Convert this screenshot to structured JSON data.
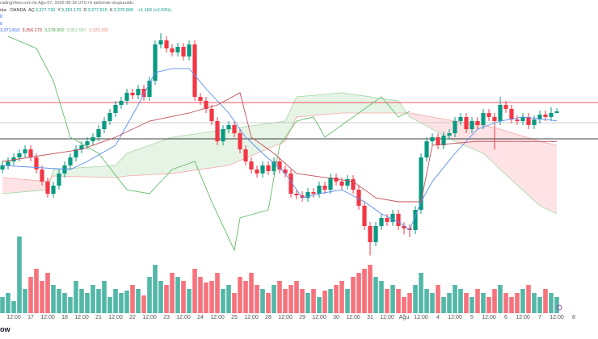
{
  "header": {
    "credit": "radingView.com ile Ağu 07, 2025 08:18 UTC+3 tarihinde oluşturuldu",
    "symbol": "ıba · OANDA",
    "ohlc": [
      {
        "key": "AÇ",
        "value": "3,377.730"
      },
      {
        "key": "Y",
        "value": "3,381.170"
      },
      {
        "key": "D",
        "value": "3,377.515"
      },
      {
        "key": "K",
        "value": "3,378.900"
      }
    ],
    "change": "+1.160 (+0.03%)",
    "indicator_rows": [
      "0",
      "0"
    ],
    "indicator_values": [
      {
        "text": "3,371.810",
        "color": "#2962ff"
      },
      {
        "text": "3,356.173",
        "color": "#b22833"
      },
      {
        "text": "3,378.900",
        "color": "#43a047"
      },
      {
        "text": "3,352.997",
        "color": "#81c784"
      },
      {
        "text": "3,326.260",
        "color": "#f28b82"
      }
    ]
  },
  "logo": "ow",
  "chart_data": {
    "type": "candlestick",
    "up_color": "#089981",
    "down_color": "#f23645",
    "ylim": [
      3225.2,
      3463.1
    ],
    "categories": [
      null,
      null,
      "12:00",
      null,
      null,
      "17",
      null,
      null,
      "12:00",
      null,
      null,
      "18",
      null,
      null,
      "12:00",
      null,
      null,
      "21",
      null,
      null,
      "12:00",
      null,
      null,
      "22",
      null,
      null,
      "12:00",
      null,
      null,
      "23",
      null,
      null,
      "12:00",
      null,
      null,
      "24",
      null,
      null,
      "12:00",
      null,
      null,
      "25",
      null,
      null,
      "12:00",
      null,
      null,
      "28",
      null,
      null,
      "12:00",
      null,
      null,
      "29",
      null,
      null,
      "12:00",
      null,
      null,
      "30",
      null,
      null,
      "12:00",
      null,
      null,
      "31",
      null,
      null,
      "12:00",
      null,
      null,
      "Ağu",
      null,
      null,
      "12:00",
      null,
      null,
      "4",
      null,
      null,
      "12:00",
      null,
      null,
      "5",
      null,
      null,
      "12:00",
      null,
      null,
      "6",
      null,
      null,
      "12:00",
      null,
      null,
      "7",
      null,
      null,
      "12:00",
      null,
      null,
      "8",
      null
    ],
    "open": [
      3335.0,
      3338.1,
      3341.1,
      3344.1,
      3347.2,
      3350.2,
      3344.1,
      3335.0,
      3325.9,
      3316.7,
      3322.8,
      3332.0,
      3338.1,
      3344.1,
      3350.2,
      3353.3,
      3356.3,
      3359.4,
      3365.5,
      3371.6,
      3377.7,
      3383.8,
      3386.9,
      3393.0,
      3391.1,
      3396.0,
      3389.9,
      3402.1,
      3429.5,
      3432.6,
      3426.5,
      3423.5,
      3427.7,
      3420.4,
      3429.5,
      3389.9,
      3386.9,
      3380.8,
      3371.6,
      3356.3,
      3365.5,
      3368.6,
      3362.4,
      3350.2,
      3341.1,
      3335.0,
      3332.0,
      3338.1,
      3333.8,
      3341.1,
      3335.0,
      3332.0,
      3316.7,
      3315.5,
      3313.6,
      3317.9,
      3316.7,
      3322.8,
      3319.7,
      3328.9,
      3325.9,
      3322.8,
      3327.7,
      3319.7,
      3307.6,
      3292.3,
      3280.1,
      3292.3,
      3298.4,
      3295.4,
      3301.5,
      3292.3,
      3290.5,
      3289.2,
      3304.5,
      3344.1,
      3356.3,
      3359.4,
      3353.3,
      3360.6,
      3362.4,
      3371.6,
      3374.7,
      3365.5,
      3371.6,
      3368.6,
      3377.7,
      3374.7,
      3371.6,
      3383.8,
      3380.8,
      3372.8,
      3371.6,
      3374.7,
      3368.6,
      3372.8,
      3376.5,
      3374.7,
      3377.7,
      null,
      null,
      null,
      null
    ],
    "high": [
      3341.1,
      3344.1,
      3347.1,
      3350.2,
      3353.2,
      3353.2,
      3347.1,
      3338.0,
      3328.9,
      3325.8,
      3335.0,
      3341.1,
      3347.1,
      3353.2,
      3356.3,
      3359.3,
      3362.4,
      3368.5,
      3374.6,
      3380.7,
      3386.8,
      3389.9,
      3396.0,
      3396.0,
      3399.0,
      3399.0,
      3405.1,
      3432.5,
      3438.0,
      3435.6,
      3429.5,
      3430.7,
      3430.7,
      3432.5,
      3432.5,
      3392.9,
      3389.9,
      3383.8,
      3374.6,
      3368.5,
      3371.6,
      3371.6,
      3365.4,
      3353.2,
      3344.1,
      3338.0,
      3341.1,
      3341.1,
      3344.1,
      3344.1,
      3338.0,
      3335.0,
      3319.7,
      3318.5,
      3320.9,
      3320.9,
      3325.8,
      3325.8,
      3331.9,
      3331.9,
      3328.9,
      3330.7,
      3330.7,
      3322.7,
      3310.6,
      3295.3,
      3295.3,
      3301.4,
      3301.4,
      3304.5,
      3304.5,
      3295.3,
      3293.5,
      3307.5,
      3347.1,
      3359.3,
      3362.4,
      3362.4,
      3363.6,
      3365.4,
      3374.6,
      3377.7,
      3377.7,
      3374.6,
      3374.6,
      3380.7,
      3380.7,
      3377.7,
      3390.0,
      3386.8,
      3383.8,
      3375.8,
      3377.7,
      3377.7,
      3375.8,
      3379.5,
      3379.5,
      3382.0,
      3381.2,
      null,
      null,
      null,
      null
    ],
    "low": [
      3332.0,
      3335.1,
      3338.1,
      3341.1,
      3344.2,
      3341.1,
      3332.0,
      3322.9,
      3313.7,
      3313.7,
      3319.8,
      3329.0,
      3335.1,
      3341.1,
      3347.2,
      3350.3,
      3353.3,
      3356.4,
      3362.5,
      3368.6,
      3374.7,
      3380.8,
      3383.9,
      3388.1,
      3388.1,
      3386.9,
      3386.9,
      3399.1,
      3426.5,
      3423.5,
      3420.5,
      3420.5,
      3417.4,
      3417.4,
      3386.9,
      3383.9,
      3377.8,
      3368.6,
      3353.3,
      3353.3,
      3362.5,
      3359.4,
      3347.2,
      3338.1,
      3332.0,
      3329.0,
      3329.0,
      3330.8,
      3330.8,
      3332.0,
      3329.0,
      3313.7,
      3312.5,
      3310.6,
      3310.6,
      3313.7,
      3313.7,
      3316.7,
      3316.7,
      3322.9,
      3319.8,
      3319.8,
      3316.7,
      3304.6,
      3289.3,
      3270.0,
      3277.1,
      3289.3,
      3292.4,
      3292.4,
      3289.3,
      3286.0,
      3284.0,
      3286.2,
      3301.5,
      3341.1,
      3353.3,
      3350.3,
      3350.3,
      3357.6,
      3359.4,
      3368.6,
      3362.5,
      3362.5,
      3365.6,
      3365.6,
      3371.7,
      3350.0,
      3368.6,
      3377.8,
      3369.8,
      3368.6,
      3368.6,
      3365.6,
      3365.6,
      3369.8,
      3371.7,
      3371.7,
      3377.5,
      null,
      null,
      null,
      null
    ],
    "close": [
      3338.1,
      3341.1,
      3344.1,
      3347.2,
      3350.2,
      3344.1,
      3335.0,
      3325.9,
      3316.7,
      3322.8,
      3332.0,
      3338.1,
      3344.1,
      3350.2,
      3353.3,
      3356.3,
      3359.4,
      3365.5,
      3371.6,
      3377.7,
      3383.8,
      3386.9,
      3393.0,
      3391.1,
      3396.0,
      3389.9,
      3402.1,
      3429.5,
      3432.6,
      3426.5,
      3423.5,
      3427.7,
      3420.4,
      3429.5,
      3389.9,
      3386.9,
      3380.8,
      3371.6,
      3356.3,
      3365.5,
      3368.6,
      3362.4,
      3350.2,
      3341.1,
      3335.0,
      3332.0,
      3338.1,
      3333.8,
      3341.1,
      3335.0,
      3332.0,
      3316.7,
      3315.5,
      3313.6,
      3317.9,
      3316.7,
      3322.8,
      3319.7,
      3328.9,
      3325.9,
      3322.8,
      3327.7,
      3319.7,
      3307.6,
      3292.3,
      3280.1,
      3292.3,
      3298.4,
      3295.4,
      3301.5,
      3292.3,
      3290.5,
      3289.2,
      3304.5,
      3344.1,
      3356.3,
      3359.4,
      3353.3,
      3360.6,
      3362.4,
      3371.6,
      3374.7,
      3365.5,
      3371.6,
      3368.6,
      3377.7,
      3374.7,
      3371.6,
      3383.8,
      3380.8,
      3372.8,
      3371.6,
      3374.7,
      3368.6,
      3372.8,
      3376.5,
      3374.7,
      3377.7,
      3378.9,
      null,
      null,
      null,
      null
    ],
    "volume": {
      "vlim": [
        0,
        100
      ],
      "values": [
        20,
        25,
        15,
        95,
        30,
        45,
        55,
        40,
        50,
        35,
        30,
        25,
        20,
        40,
        30,
        25,
        35,
        30,
        40,
        20,
        30,
        25,
        28,
        35,
        30,
        22,
        45,
        60,
        40,
        35,
        50,
        45,
        40,
        30,
        55,
        45,
        38,
        40,
        50,
        30,
        35,
        25,
        45,
        40,
        50,
        35,
        30,
        25,
        35,
        40,
        30,
        35,
        40,
        30,
        25,
        30,
        20,
        28,
        30,
        35,
        40,
        30,
        45,
        50,
        55,
        60,
        45,
        40,
        30,
        35,
        30,
        20,
        25,
        35,
        50,
        30,
        25,
        35,
        20,
        25,
        35,
        30,
        25,
        20,
        30,
        25,
        20,
        30,
        35,
        25,
        20,
        25,
        30,
        35,
        25,
        20,
        30,
        25,
        20,
        null,
        null,
        null,
        null
      ]
    },
    "cloud": {
      "x": [
        0,
        8,
        9,
        20,
        22,
        30,
        40,
        50,
        52,
        60,
        70,
        72,
        80,
        85,
        88,
        95,
        98
      ],
      "span_a": [
        3316.7,
        3319.7,
        3335.0,
        3338.1,
        3347.2,
        3359.4,
        3365.5,
        3371.6,
        3389.9,
        3393.0,
        3386.9,
        3374.7,
        3356.3,
        3347.2,
        3335.0,
        3307.6,
        3301.5
      ],
      "span_b": [
        3328.9,
        3325.9,
        3330.1,
        3328.9,
        3330.1,
        3332.0,
        3338.1,
        3356.3,
        3374.7,
        3377.7,
        3377.7,
        3377.7,
        3371.6,
        3368.6,
        3365.5,
        3356.3,
        3353.3
      ],
      "span_a_color": "#a5d6a7",
      "span_b_color": "#f4a9a9",
      "up_fill": "rgba(76,175,80,0.14)",
      "down_fill": "rgba(242,54,69,0.14)"
    },
    "lines": [
      {
        "color": "#5b8def",
        "x": [
          0,
          12,
          15,
          20,
          24,
          27,
          30,
          33,
          36,
          40,
          43,
          46,
          50,
          53,
          56,
          60,
          64,
          67,
          70,
          72,
          74,
          76,
          80,
          84,
          88,
          92,
          98
        ],
        "values": [
          3338.1,
          3335.0,
          3341.1,
          3353.3,
          3383.8,
          3408.2,
          3411.3,
          3411.3,
          3396.0,
          3377.7,
          3359.4,
          3347.2,
          3332.0,
          3313.6,
          3316.7,
          3319.7,
          3310.6,
          3301.5,
          3295.4,
          3289.2,
          3310.6,
          3325.9,
          3347.2,
          3365.5,
          3371.6,
          3374.7,
          3371.8
        ]
      },
      {
        "color": "#c0505a",
        "x": [
          0,
          14,
          20,
          26,
          33,
          38,
          42,
          44,
          48,
          52,
          62,
          66,
          70,
          74,
          76,
          84,
          98
        ],
        "values": [
          3341.1,
          3350.2,
          3359.4,
          3371.6,
          3377.7,
          3383.8,
          3393.0,
          3359.4,
          3347.2,
          3332.0,
          3325.9,
          3313.6,
          3310.6,
          3310.6,
          3353.3,
          3356.3,
          3356.2
        ]
      },
      {
        "color": "#66bb6a",
        "x": [
          1,
          6,
          9,
          12,
          17,
          22,
          26,
          30,
          34,
          37,
          41,
          42,
          47,
          49,
          52,
          55,
          57,
          61,
          67,
          70,
          72
        ],
        "values": [
          3435.6,
          3426.5,
          3402.1,
          3359.4,
          3347.2,
          3319.7,
          3316.7,
          3335.0,
          3341.1,
          3310.6,
          3274.0,
          3298.4,
          3304.5,
          3353.3,
          3371.6,
          3374.7,
          3359.4,
          3371.6,
          3389.9,
          3374.7,
          3378.9
        ]
      }
    ],
    "hlines": [
      {
        "value": 3385.6,
        "color": "#f23645"
      },
      {
        "value": 3370.4,
        "color": "#bbbbbb"
      },
      {
        "value": 3358.2,
        "color": "#000000"
      }
    ]
  }
}
